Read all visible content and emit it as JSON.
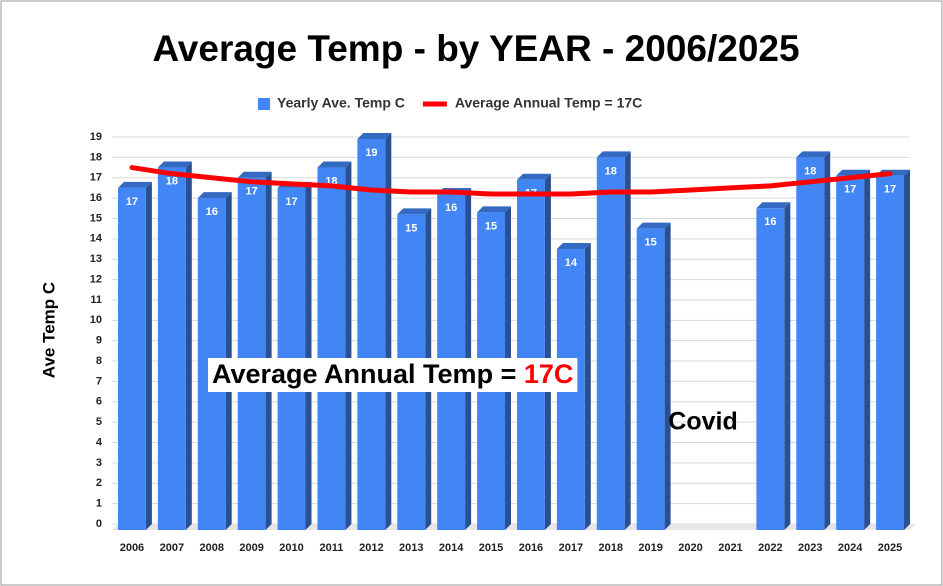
{
  "chart_data": {
    "type": "bar",
    "title": "Average Temp - by YEAR - 2006/2025",
    "y_label": "Ave Temp C",
    "categories": [
      "2006",
      "2007",
      "2008",
      "2009",
      "2010",
      "2011",
      "2012",
      "2013",
      "2014",
      "2015",
      "2016",
      "2017",
      "2018",
      "2019",
      "2020",
      "2021",
      "2022",
      "2023",
      "2024",
      "2025"
    ],
    "series": [
      {
        "name": "Yearly Ave. Temp C",
        "type": "bar",
        "color": "#4285f4",
        "values": [
          16.5,
          17.5,
          16.0,
          17.0,
          16.5,
          17.5,
          18.9,
          15.2,
          16.2,
          15.3,
          16.9,
          13.5,
          18.0,
          14.5,
          null,
          null,
          15.5,
          18.0,
          17.1,
          17.1
        ],
        "value_labels": [
          "17",
          "18",
          "16",
          "17",
          "17",
          "18",
          "19",
          "15",
          "16",
          "15",
          "17",
          "14",
          "18",
          "15",
          null,
          null,
          "16",
          "18",
          "17",
          "17"
        ]
      },
      {
        "name": "Average Annual Temp = 17C",
        "type": "line",
        "color": "#ff0000",
        "values": [
          17.5,
          17.2,
          17.0,
          16.8,
          16.7,
          16.6,
          16.4,
          16.3,
          16.3,
          16.2,
          16.2,
          16.2,
          16.3,
          16.3,
          16.4,
          16.5,
          16.6,
          16.8,
          17.0,
          17.2
        ]
      }
    ],
    "ylim": [
      0,
      19
    ],
    "yticks": [
      0,
      1,
      2,
      3,
      4,
      5,
      6,
      7,
      8,
      9,
      10,
      11,
      12,
      13,
      14,
      15,
      16,
      17,
      18,
      19
    ],
    "grid": true,
    "legend": "top",
    "annotations": [
      {
        "text": "Average Annual Temp = ",
        "highlight": "17C",
        "highlight_color": "#ff0000"
      },
      {
        "text": "Covid"
      }
    ]
  }
}
